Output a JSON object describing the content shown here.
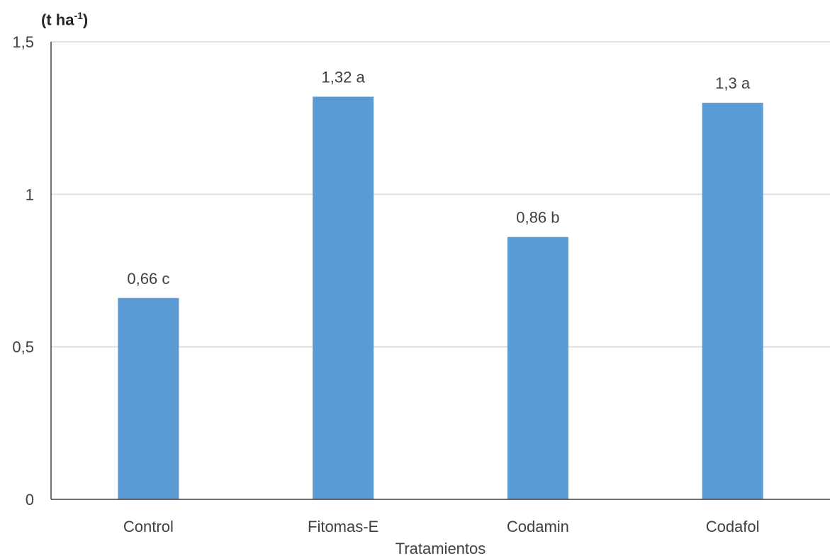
{
  "chart_data": {
    "type": "bar",
    "title": "",
    "ylabel_main": "(t ha",
    "ylabel_sup": "-1",
    "ylabel_end": ")",
    "xlabel": "Tratamientos",
    "categories": [
      "Control",
      "Fitomas-E",
      "Codamin",
      "Codafol"
    ],
    "values": [
      0.66,
      1.32,
      0.86,
      1.3
    ],
    "data_labels": [
      "0,66 c",
      "1,32 a",
      "0,86 b",
      "1,3 a"
    ],
    "ylim": [
      0,
      1.5
    ],
    "yticks": [
      {
        "value": 0,
        "label": "0"
      },
      {
        "value": 0.5,
        "label": "0,5"
      },
      {
        "value": 1,
        "label": "1"
      },
      {
        "value": 1.5,
        "label": "1,5"
      }
    ],
    "grid": true,
    "bar_color": "#5b9bd5",
    "gridline_color": "#d9d9d9",
    "axis_color": "#404040",
    "text_color": "#404040"
  }
}
